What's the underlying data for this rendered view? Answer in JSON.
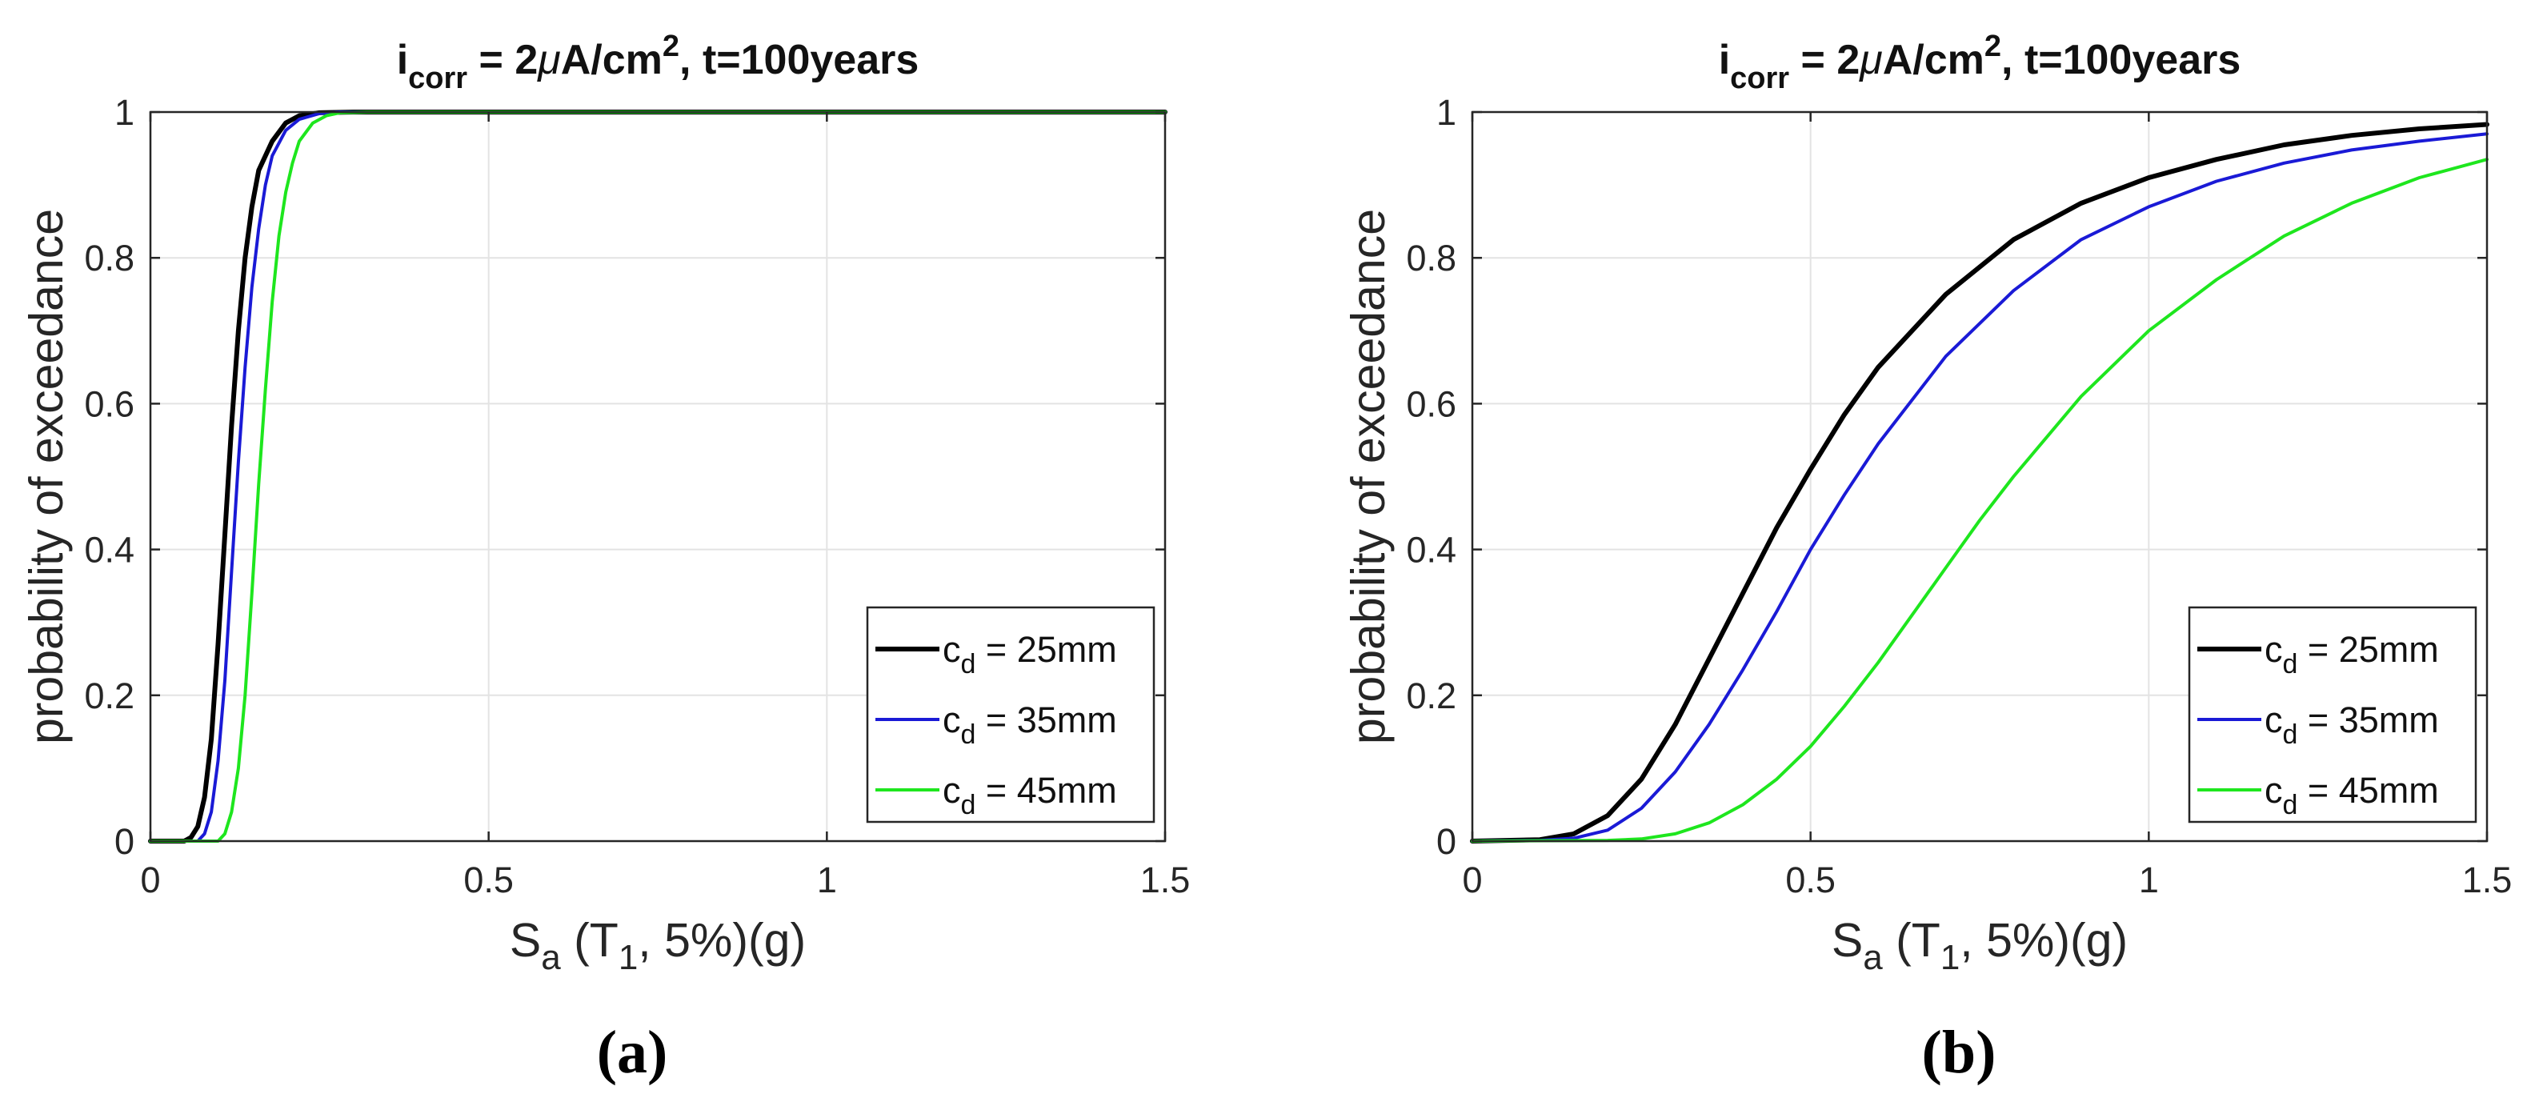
{
  "chart_data": [
    {
      "type": "line",
      "panel_label": "(a)",
      "title": {
        "i": "i",
        "sub": "corr",
        "mid": " = 2",
        "mu": "μ",
        "unit": "A/cm",
        "sup": "2",
        "tail": ", t=100years"
      },
      "xlabel": {
        "main": "S",
        "sub1": "a",
        "mid": " (T",
        "sub2": "1",
        "tail": ", 5%)(g)"
      },
      "ylabel": "probability of exceedance",
      "xlim": [
        0,
        1.5
      ],
      "ylim": [
        0,
        1
      ],
      "xticks": [
        0,
        0.5,
        1,
        1.5
      ],
      "xtick_labels": [
        "0",
        "0.5",
        "1",
        "1.5"
      ],
      "yticks": [
        0,
        0.2,
        0.4,
        0.6,
        0.8,
        1
      ],
      "ytick_labels": [
        "0",
        "0.2",
        "0.4",
        "0.6",
        "0.8",
        "1"
      ],
      "grid": true,
      "legend_position": "bottom-right",
      "series": [
        {
          "name": "c_d = 25mm",
          "legend": {
            "c": "c",
            "sub": "d",
            "rest": " = 25mm"
          },
          "color": "#000000",
          "x": [
            0,
            0.05,
            0.06,
            0.07,
            0.08,
            0.09,
            0.1,
            0.11,
            0.12,
            0.13,
            0.14,
            0.15,
            0.16,
            0.18,
            0.2,
            0.22,
            0.25,
            0.3,
            0.4,
            1.5
          ],
          "y": [
            0,
            0,
            0.005,
            0.02,
            0.06,
            0.14,
            0.27,
            0.42,
            0.57,
            0.7,
            0.8,
            0.87,
            0.92,
            0.96,
            0.985,
            0.995,
            0.999,
            1,
            1,
            1
          ]
        },
        {
          "name": "c_d = 35mm",
          "legend": {
            "c": "c",
            "sub": "d",
            "rest": " = 35mm"
          },
          "color": "#1a1ad6",
          "x": [
            0,
            0.07,
            0.08,
            0.09,
            0.1,
            0.11,
            0.12,
            0.13,
            0.14,
            0.15,
            0.16,
            0.17,
            0.18,
            0.2,
            0.22,
            0.25,
            0.28,
            0.35,
            1.5
          ],
          "y": [
            0,
            0,
            0.01,
            0.04,
            0.11,
            0.22,
            0.37,
            0.52,
            0.65,
            0.76,
            0.84,
            0.9,
            0.94,
            0.975,
            0.99,
            0.998,
            1,
            1,
            1
          ]
        },
        {
          "name": "c_d = 45mm",
          "legend": {
            "c": "c",
            "sub": "d",
            "rest": " = 45mm"
          },
          "color": "#1ee61e",
          "x": [
            0,
            0.1,
            0.11,
            0.12,
            0.13,
            0.14,
            0.15,
            0.16,
            0.17,
            0.18,
            0.19,
            0.2,
            0.21,
            0.22,
            0.24,
            0.26,
            0.28,
            0.32,
            1.5
          ],
          "y": [
            0,
            0,
            0.01,
            0.04,
            0.1,
            0.2,
            0.34,
            0.49,
            0.62,
            0.74,
            0.83,
            0.89,
            0.93,
            0.96,
            0.985,
            0.995,
            0.999,
            1,
            1
          ]
        }
      ]
    },
    {
      "type": "line",
      "panel_label": "(b)",
      "title": {
        "i": "i",
        "sub": "corr",
        "mid": " = 2",
        "mu": "μ",
        "unit": "A/cm",
        "sup": "2",
        "tail": ", t=100years"
      },
      "xlabel": {
        "main": "S",
        "sub1": "a",
        "mid": " (T",
        "sub2": "1",
        "tail": ", 5%)(g)"
      },
      "ylabel": "probability of exceedance",
      "xlim": [
        0,
        1.5
      ],
      "ylim": [
        0,
        1
      ],
      "xticks": [
        0,
        0.5,
        1,
        1.5
      ],
      "xtick_labels": [
        "0",
        "0.5",
        "1",
        "1.5"
      ],
      "yticks": [
        0,
        0.2,
        0.4,
        0.6,
        0.8,
        1
      ],
      "ytick_labels": [
        "0",
        "0.2",
        "0.4",
        "0.6",
        "0.8",
        "1"
      ],
      "grid": true,
      "legend_position": "bottom-right",
      "series": [
        {
          "name": "c_d = 25mm",
          "legend": {
            "c": "c",
            "sub": "d",
            "rest": " = 25mm"
          },
          "color": "#000000",
          "x": [
            0,
            0.1,
            0.15,
            0.2,
            0.25,
            0.3,
            0.35,
            0.4,
            0.45,
            0.5,
            0.55,
            0.6,
            0.7,
            0.8,
            0.9,
            1.0,
            1.1,
            1.2,
            1.3,
            1.4,
            1.5
          ],
          "y": [
            0,
            0.002,
            0.01,
            0.035,
            0.085,
            0.16,
            0.25,
            0.34,
            0.43,
            0.51,
            0.585,
            0.65,
            0.75,
            0.825,
            0.875,
            0.91,
            0.935,
            0.955,
            0.968,
            0.977,
            0.983
          ]
        },
        {
          "name": "c_d = 35mm",
          "legend": {
            "c": "c",
            "sub": "d",
            "rest": " = 35mm"
          },
          "color": "#1a1ad6",
          "x": [
            0,
            0.1,
            0.15,
            0.2,
            0.25,
            0.3,
            0.35,
            0.4,
            0.45,
            0.5,
            0.55,
            0.6,
            0.7,
            0.8,
            0.9,
            1.0,
            1.1,
            1.2,
            1.3,
            1.4,
            1.5
          ],
          "y": [
            0,
            0.001,
            0.004,
            0.015,
            0.045,
            0.095,
            0.16,
            0.235,
            0.315,
            0.4,
            0.475,
            0.545,
            0.665,
            0.755,
            0.825,
            0.87,
            0.905,
            0.93,
            0.948,
            0.96,
            0.97
          ]
        },
        {
          "name": "c_d = 45mm",
          "legend": {
            "c": "c",
            "sub": "d",
            "rest": " = 45mm"
          },
          "color": "#1ee61e",
          "x": [
            0,
            0.2,
            0.25,
            0.3,
            0.35,
            0.4,
            0.45,
            0.5,
            0.55,
            0.6,
            0.65,
            0.7,
            0.75,
            0.8,
            0.9,
            1.0,
            1.1,
            1.2,
            1.3,
            1.4,
            1.5
          ],
          "y": [
            0,
            0.001,
            0.003,
            0.01,
            0.025,
            0.05,
            0.085,
            0.13,
            0.185,
            0.245,
            0.31,
            0.375,
            0.44,
            0.5,
            0.61,
            0.7,
            0.77,
            0.83,
            0.875,
            0.91,
            0.935
          ]
        }
      ]
    }
  ]
}
